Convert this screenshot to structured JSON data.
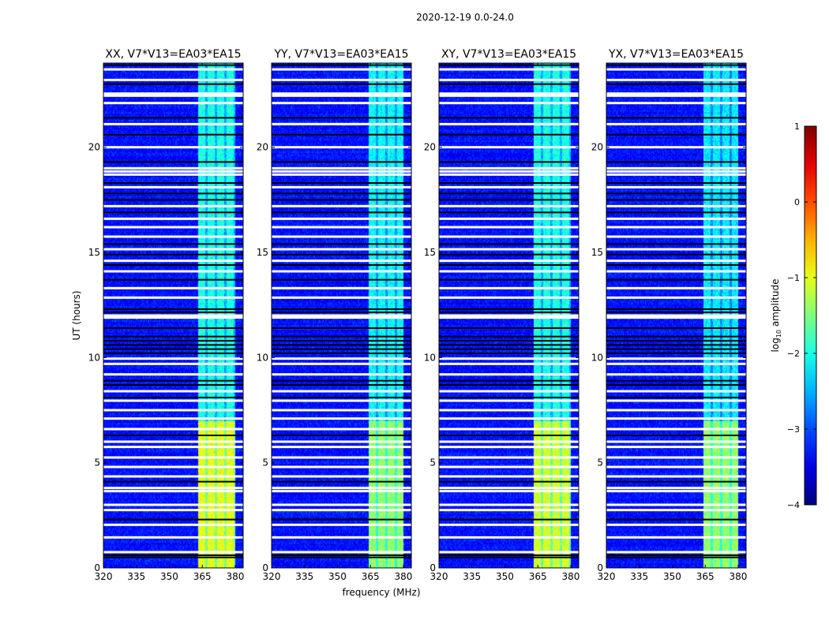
{
  "chart_data": {
    "type": "heatmap",
    "title": "2020-12-19 0.0-24.0",
    "xlabel": "frequency (MHz)",
    "ylabel": "UT (hours)",
    "xlim": [
      320,
      383.6
    ],
    "ylim": [
      0,
      24
    ],
    "xticks": [
      320,
      335,
      350,
      365,
      380
    ],
    "yticks": [
      0,
      5,
      10,
      15,
      20
    ],
    "panels": [
      {
        "title": "XX, V7*V13=EA03*EA15",
        "band_start": 363,
        "band_level_early": -1.0,
        "band_level_late": -2.0
      },
      {
        "title": "YY, V7*V13=EA03*EA15",
        "band_start": 364,
        "band_level_early": -1.4,
        "band_level_late": -2.1
      },
      {
        "title": "XY, V7*V13=EA03*EA15",
        "band_start": 363,
        "band_level_early": -1.1,
        "band_level_late": -2.0
      },
      {
        "title": "YX, V7*V13=EA03*EA15",
        "band_start": 364,
        "band_level_early": -1.4,
        "band_level_late": -2.2
      }
    ],
    "background_level": -3.3,
    "band_end": 380,
    "flagged_rows_hours": [
      23.7,
      23.2,
      22.55,
      22.45,
      22.1,
      21.1,
      20.0,
      19.0,
      18.85,
      18.7,
      18.1,
      17.2,
      16.6,
      16.2,
      15.75,
      15.15,
      14.6,
      14.1,
      13.3,
      12.85,
      12.0,
      11.9,
      9.95,
      9.7,
      9.2,
      8.4,
      7.95,
      7.5,
      7.1,
      6.6,
      6.0,
      5.75,
      5.25,
      4.8,
      4.35,
      3.8,
      3.65,
      3.0,
      2.75,
      2.05,
      1.45,
      0.75
    ],
    "low_rows_hours": [
      23.9,
      23.0,
      21.4,
      20.6,
      19.3,
      18.3,
      17.8,
      17.5,
      16.9,
      15.4,
      14.9,
      14.4,
      13.7,
      12.3,
      12.15,
      11.4,
      11.0,
      10.8,
      10.6,
      10.4,
      10.2,
      8.9,
      8.7,
      8.1,
      6.3,
      4.1,
      2.3,
      0.6,
      0.5
    ],
    "colorbar": {
      "label": "log10 amplitude",
      "label_main": "log",
      "label_sub": "10",
      "label_rest": " amplitude",
      "range": [
        -4,
        1
      ],
      "ticks": [
        "1",
        "0",
        "−1",
        "−2",
        "−3",
        "−4"
      ],
      "tick_values": [
        1,
        0,
        -1,
        -2,
        -3,
        -4
      ],
      "colormap": "jet"
    }
  }
}
